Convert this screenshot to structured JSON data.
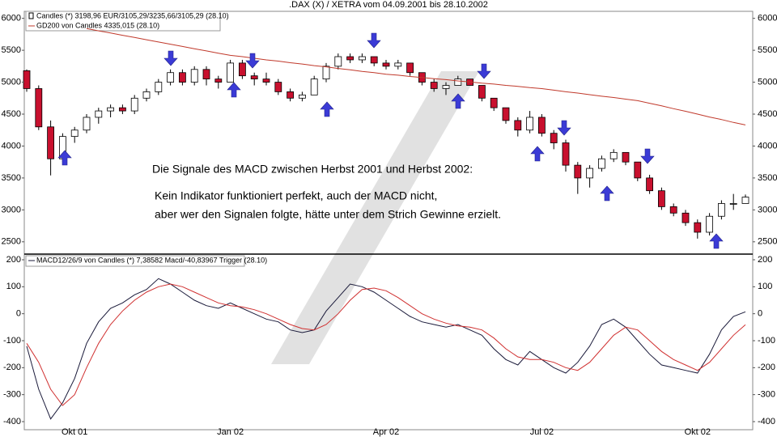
{
  "chart_data": [
    {
      "type": "candlestick",
      "title": ".DAX (X) / XETRA vom 04.09.2001 bis 28.10.2002",
      "categories": [
        null,
        null,
        null,
        null,
        "Okt 01",
        null,
        null,
        null,
        null,
        null,
        null,
        null,
        null,
        null,
        null,
        null,
        null,
        "Jan 02",
        null,
        null,
        null,
        null,
        null,
        null,
        null,
        null,
        null,
        null,
        null,
        null,
        "Apr 02",
        null,
        null,
        null,
        null,
        null,
        null,
        null,
        null,
        null,
        null,
        null,
        null,
        "Jul 02",
        null,
        null,
        null,
        null,
        null,
        null,
        null,
        null,
        null,
        null,
        null,
        null,
        "Okt 02",
        null,
        null,
        null,
        null
      ],
      "series": [
        {
          "name": "Candles (*) 3198,96 EUR/3105,29/3235,66/3105,29 (28.10)",
          "color": "#000000",
          "down_color": "#c8102e",
          "open": [
            5180,
            4900,
            4300,
            3800,
            4150,
            4250,
            4450,
            4550,
            4600,
            4550,
            4750,
            4850,
            5000,
            5150,
            5000,
            5200,
            5050,
            5000,
            5300,
            5100,
            5050,
            5000,
            4850,
            4750,
            4800,
            5050,
            5250,
            5400,
            5350,
            5400,
            5300,
            5250,
            5300,
            5150,
            5000,
            4900,
            4950,
            5050,
            4950,
            4750,
            4600,
            4400,
            4250,
            4450,
            4200,
            4050,
            3700,
            3500,
            3650,
            3800,
            3900,
            3750,
            3500,
            3300,
            3050,
            2950,
            2800,
            2650,
            2900,
            3100,
            3100
          ],
          "high": [
            5200,
            4950,
            4400,
            4200,
            4300,
            4500,
            4600,
            4650,
            4650,
            4800,
            4900,
            5050,
            5200,
            5200,
            5250,
            5250,
            5100,
            5350,
            5350,
            5150,
            5150,
            5050,
            4900,
            4850,
            5100,
            5300,
            5450,
            5450,
            5450,
            5400,
            5350,
            5350,
            5300,
            5150,
            5050,
            5000,
            5100,
            5050,
            4950,
            4750,
            4600,
            4450,
            4550,
            4500,
            4250,
            4100,
            3750,
            3700,
            3850,
            3950,
            3900,
            3750,
            3550,
            3350,
            3100,
            3000,
            2850,
            2950,
            3150,
            3250,
            3240
          ],
          "low": [
            4850,
            4250,
            3540,
            3750,
            4050,
            4200,
            4350,
            4450,
            4500,
            4500,
            4700,
            4800,
            4950,
            4950,
            4950,
            4950,
            4900,
            5000,
            5050,
            4950,
            4950,
            4800,
            4700,
            4700,
            4800,
            5000,
            5200,
            5300,
            5300,
            5250,
            5200,
            5200,
            5100,
            4950,
            4850,
            4800,
            4950,
            4950,
            4700,
            4550,
            4350,
            4150,
            4200,
            4150,
            3950,
            3600,
            3250,
            3350,
            3600,
            3750,
            3700,
            3450,
            3250,
            3000,
            2900,
            2750,
            2550,
            2600,
            2850,
            3000,
            3100
          ],
          "close": [
            4900,
            4300,
            3800,
            4150,
            4250,
            4450,
            4550,
            4600,
            4550,
            4750,
            4850,
            5000,
            5150,
            5000,
            5200,
            5050,
            5000,
            5300,
            5100,
            5050,
            5000,
            4850,
            4750,
            4800,
            5050,
            5250,
            5400,
            5350,
            5400,
            5300,
            5250,
            5300,
            5150,
            5000,
            4900,
            4950,
            5050,
            4950,
            4750,
            4600,
            4400,
            4250,
            4450,
            4200,
            4050,
            3700,
            3500,
            3650,
            3800,
            3900,
            3750,
            3500,
            3300,
            3050,
            2950,
            2800,
            2650,
            2900,
            3100,
            3100,
            3200
          ]
        },
        {
          "name": "GD200 von Candles 4335,015 (28.10)",
          "type": "line",
          "color": "#c0392b",
          "values": [
            null,
            null,
            null,
            null,
            null,
            5840,
            5805,
            5770,
            5735,
            5700,
            5665,
            5630,
            5595,
            5560,
            5525,
            5490,
            5455,
            5420,
            5400,
            5375,
            5350,
            5330,
            5305,
            5285,
            5260,
            5240,
            5215,
            5195,
            5170,
            5150,
            5125,
            5110,
            5090,
            5075,
            5055,
            5040,
            5020,
            5005,
            4985,
            4970,
            4950,
            4935,
            4915,
            4900,
            4875,
            4850,
            4830,
            4805,
            4780,
            4760,
            4735,
            4710,
            4670,
            4630,
            4585,
            4545,
            4500,
            4455,
            4415,
            4370,
            4330
          ]
        }
      ],
      "ylim": [
        2320,
        6110
      ],
      "yticks": [
        2500,
        3000,
        3500,
        4000,
        4500,
        5000,
        5500,
        6000
      ],
      "annotations": [
        "Die Signale des MACD zwischen Herbst 2001 und Herbst 2002:",
        "Kein Indikator funktioniert perfekt, auch der MACD nicht,",
        "aber wer den Signalen folgte, hätte unter dem Strich Gewinne erzielt."
      ]
    },
    {
      "type": "line",
      "legend": "MACD12/26/9 von Candles (*) 7,38582 Macd/-40,83967 Trigger (28.10)",
      "series": [
        {
          "name": "MACD",
          "color": "#1a1a3a",
          "values": [
            -120,
            -280,
            -390,
            -330,
            -240,
            -110,
            -30,
            20,
            40,
            70,
            90,
            130,
            110,
            80,
            50,
            30,
            20,
            40,
            20,
            0,
            -20,
            -30,
            -60,
            -70,
            -60,
            10,
            60,
            110,
            100,
            80,
            50,
            20,
            -10,
            -30,
            -40,
            -50,
            -40,
            -60,
            -80,
            -130,
            -170,
            -190,
            -140,
            -170,
            -200,
            -220,
            -180,
            -120,
            -40,
            -20,
            -50,
            -100,
            -150,
            -190,
            -200,
            -210,
            -220,
            -150,
            -60,
            -10,
            7
          ]
        },
        {
          "name": "Trigger",
          "color": "#d03030",
          "values": [
            -110,
            -180,
            -280,
            -340,
            -300,
            -200,
            -110,
            -40,
            10,
            50,
            80,
            100,
            110,
            100,
            80,
            60,
            40,
            30,
            25,
            15,
            0,
            -20,
            -40,
            -55,
            -60,
            -40,
            0,
            50,
            90,
            95,
            85,
            60,
            30,
            0,
            -20,
            -35,
            -45,
            -50,
            -60,
            -90,
            -130,
            -160,
            -170,
            -170,
            -180,
            -200,
            -210,
            -180,
            -130,
            -80,
            -50,
            -60,
            -100,
            -140,
            -170,
            -190,
            -210,
            -180,
            -130,
            -80,
            -41
          ]
        }
      ],
      "ylim": [
        -430,
        218
      ],
      "yticks": [
        -400,
        -300,
        -200,
        -100,
        0,
        100,
        200
      ]
    }
  ]
}
